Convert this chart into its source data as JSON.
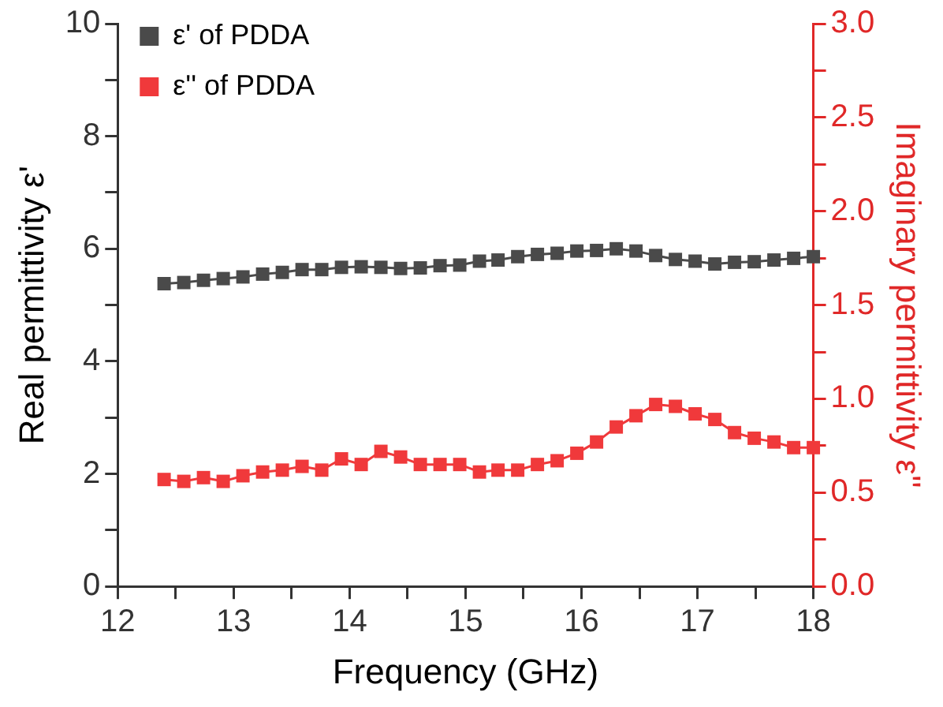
{
  "chart_data": {
    "type": "line",
    "xlabel": "Frequency (GHz)",
    "ylabel": "Real permittivity ε'",
    "y2label": "Imaginary permittivity ε''",
    "x": [
      12.4,
      12.57,
      12.74,
      12.91,
      13.08,
      13.25,
      13.42,
      13.59,
      13.76,
      13.93,
      14.1,
      14.27,
      14.44,
      14.61,
      14.78,
      14.95,
      15.12,
      15.28,
      15.45,
      15.62,
      15.79,
      15.96,
      16.13,
      16.3,
      16.47,
      16.64,
      16.81,
      16.98,
      17.15,
      17.32,
      17.49,
      17.66,
      17.83,
      18.0
    ],
    "series": [
      {
        "name": "ε' of PDDA",
        "color": "#4a4a4a",
        "values": [
          5.38,
          5.4,
          5.44,
          5.47,
          5.5,
          5.55,
          5.58,
          5.63,
          5.63,
          5.67,
          5.68,
          5.67,
          5.65,
          5.66,
          5.7,
          5.71,
          5.78,
          5.8,
          5.86,
          5.9,
          5.92,
          5.96,
          5.97,
          6.0,
          5.96,
          5.88,
          5.81,
          5.78,
          5.73,
          5.76,
          5.77,
          5.8,
          5.83,
          5.86
        ]
      },
      {
        "name": "ε'' of PDDA",
        "color": "#f0393b",
        "axis": "y2",
        "values": [
          0.57,
          0.56,
          0.58,
          0.56,
          0.59,
          0.61,
          0.62,
          0.64,
          0.62,
          0.68,
          0.65,
          0.72,
          0.69,
          0.65,
          0.65,
          0.65,
          0.61,
          0.62,
          0.62,
          0.65,
          0.67,
          0.71,
          0.77,
          0.85,
          0.91,
          0.97,
          0.96,
          0.92,
          0.89,
          0.82,
          0.79,
          0.77,
          0.74,
          0.74
        ]
      }
    ],
    "xlim": [
      12,
      18
    ],
    "xticks": [
      12,
      {
        "value": 12.5,
        "label": null
      },
      13,
      {
        "value": 13.5,
        "label": null
      },
      14,
      {
        "value": 14.5,
        "label": null
      },
      15,
      {
        "value": 15.5,
        "label": null
      },
      16,
      {
        "value": 16.5,
        "label": null
      },
      17,
      {
        "value": 17.5,
        "label": null
      },
      18
    ],
    "ylim": [
      0,
      10
    ],
    "yticks": [
      0,
      {
        "value": 1,
        "label": null
      },
      2,
      {
        "value": 3,
        "label": null
      },
      4,
      {
        "value": 5,
        "label": null
      },
      6,
      {
        "value": 7,
        "label": null
      },
      8,
      {
        "value": 9,
        "label": null
      },
      10
    ],
    "y2lim": [
      0,
      3
    ],
    "y2ticks": [
      {
        "value": 0,
        "label": "0.0"
      },
      {
        "value": 0.25,
        "label": null
      },
      {
        "value": 0.5,
        "label": "0.5"
      },
      {
        "value": 0.75,
        "label": null
      },
      {
        "value": 1,
        "label": "1.0"
      },
      {
        "value": 1.25,
        "label": null
      },
      {
        "value": 1.5,
        "label": "1.5"
      },
      {
        "value": 1.75,
        "label": null
      },
      {
        "value": 2,
        "label": "2.0"
      },
      {
        "value": 2.25,
        "label": null
      },
      {
        "value": 2.5,
        "label": "2.5"
      },
      {
        "value": 2.75,
        "label": null
      },
      {
        "value": 3,
        "label": "3.0"
      }
    ],
    "marker": "square",
    "line_style": "solid",
    "legend": "top left",
    "grid": false
  }
}
